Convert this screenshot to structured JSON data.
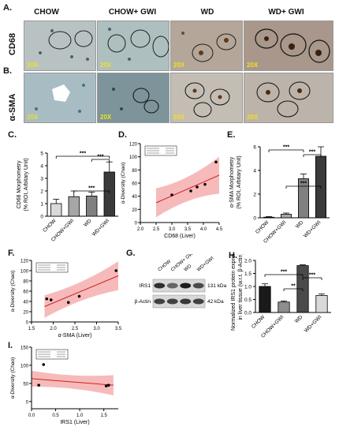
{
  "panel_labels": {
    "A": "A.",
    "B": "B.",
    "C": "C.",
    "D": "D.",
    "E": "E.",
    "F": "F.",
    "G": "G.",
    "H": "H.",
    "I": "I."
  },
  "histology": {
    "columns": [
      "CHOW",
      "CHOW+ GWI",
      "WD",
      "WD+ GWI"
    ],
    "rows": [
      "CD68",
      "α-SMA"
    ],
    "magnification": "20X",
    "tile_colors": {
      "cd68": [
        "#b9c2c2",
        "#aebfbf",
        "#b4a698",
        "#a8978a"
      ],
      "asma": [
        "#a8bcc4",
        "#7c949a",
        "#c4bdb4",
        "#bcb3aa"
      ]
    }
  },
  "chart_data": [
    {
      "id": "C",
      "type": "bar",
      "categories": [
        "CHOW",
        "CHOW+GWI",
        "WD",
        "WD+GWI"
      ],
      "values": [
        1.0,
        1.55,
        1.6,
        3.5
      ],
      "errors": [
        0.35,
        0.45,
        0.3,
        0.8
      ],
      "colors": [
        "#d9d9d9",
        "#a6a6a6",
        "#808080",
        "#3a3a3a"
      ],
      "ylabel": "CD68 Morphometry",
      "ylabel2": "(% ROI, Arbitary Unit)",
      "ylim": [
        0,
        5
      ],
      "yticks": [
        "0",
        "1",
        "2",
        "3",
        "4",
        "5"
      ],
      "significance": [
        "***",
        "***",
        "***"
      ]
    },
    {
      "id": "D",
      "type": "scatter",
      "x": [
        3.0,
        3.6,
        3.8,
        4.05,
        4.4
      ],
      "y": [
        42,
        48,
        54,
        58,
        92
      ],
      "fit": [
        [
          2.5,
          30
        ],
        [
          4.5,
          72
        ]
      ],
      "xlabel": "CD68 (Liver)",
      "ylabel": "α-Diversity (Chao)",
      "xlim": [
        2.0,
        4.5
      ],
      "ylim": [
        0,
        120
      ],
      "xticks": [
        "2.0",
        "2.5",
        "3.0",
        "3.5",
        "4.0",
        "4.5"
      ],
      "yticks": [
        "0",
        "20",
        "40",
        "60",
        "80",
        "100",
        "120"
      ]
    },
    {
      "id": "E",
      "type": "bar",
      "categories": [
        "CHOW",
        "CHOW+GWI",
        "WD",
        "WD+GWI"
      ],
      "values": [
        0.05,
        0.3,
        3.3,
        5.2
      ],
      "errors": [
        0.05,
        0.1,
        0.4,
        0.8
      ],
      "colors": [
        "#d9d9d9",
        "#a6a6a6",
        "#808080",
        "#3a3a3a"
      ],
      "ylabel": "α-SMA Morphometry",
      "ylabel2": "(% ROI, Arbitary Unit)",
      "ylim": [
        0,
        6
      ],
      "yticks": [
        "0",
        "2",
        "4",
        "6"
      ],
      "significance": [
        "***",
        "***",
        "***"
      ]
    },
    {
      "id": "F",
      "type": "scatter",
      "x": [
        1.85,
        1.95,
        2.35,
        2.6,
        3.45
      ],
      "y": [
        45,
        43,
        38,
        50,
        100
      ],
      "fit": [
        [
          1.8,
          30
        ],
        [
          3.5,
          90
        ]
      ],
      "xlabel": "α-SMA (Liver)",
      "ylabel": "α-Diversity (Chao)",
      "xlim": [
        1.5,
        3.5
      ],
      "ylim": [
        0,
        120
      ],
      "xticks": [
        "1.5",
        "2.0",
        "2.5",
        "3.0",
        "3.5"
      ],
      "yticks": [
        "0",
        "20",
        "40",
        "60",
        "80",
        "100",
        "120"
      ]
    },
    {
      "id": "H",
      "type": "bar",
      "categories": [
        "CHOW",
        "CHOW+GWI",
        "WD",
        "WD+GWI"
      ],
      "values": [
        1.0,
        0.4,
        1.8,
        0.65
      ],
      "errors": [
        0.1,
        0.04,
        0.03,
        0.06
      ],
      "colors": [
        "#1a1a1a",
        "#8e8e8e",
        "#4a4a4a",
        "#d9d9d9"
      ],
      "ylabel": "Normalized IRS1 protein expression",
      "ylabel2": "in liver tissue (w.r.t. β-Actin)",
      "ylim": [
        0,
        2
      ],
      "yticks": [
        "0.0",
        "0.5",
        "1.0",
        "1.5",
        "2.0"
      ],
      "significance": [
        "***",
        "***",
        "**"
      ]
    },
    {
      "id": "I",
      "type": "scatter",
      "x": [
        0.15,
        0.25,
        1.55,
        1.6
      ],
      "y": [
        45,
        102,
        43,
        45
      ],
      "fit": [
        [
          0.0,
          63
        ],
        [
          1.7,
          45
        ]
      ],
      "xlabel": "IRS1 (Liver)",
      "ylabel": "α-Diversity (Chao)",
      "xlim": [
        0.0,
        1.8
      ],
      "ylim": [
        -20,
        150
      ],
      "xticks": [
        "0.0",
        "0.5",
        "1.0",
        "1.5"
      ],
      "yticks": [
        "0",
        "50",
        "100",
        "150"
      ]
    }
  ],
  "blot": {
    "lanes": [
      "CHOW",
      "CHOW+ GWI",
      "WD",
      "WD+GWI"
    ],
    "rows": [
      {
        "name": "IRS1",
        "size": "131 kDa",
        "intensity": [
          0.85,
          0.55,
          0.95,
          0.7
        ]
      },
      {
        "name": "β-Actin",
        "size": "42 kDa",
        "intensity": [
          0.75,
          0.75,
          0.8,
          0.75
        ]
      }
    ]
  }
}
